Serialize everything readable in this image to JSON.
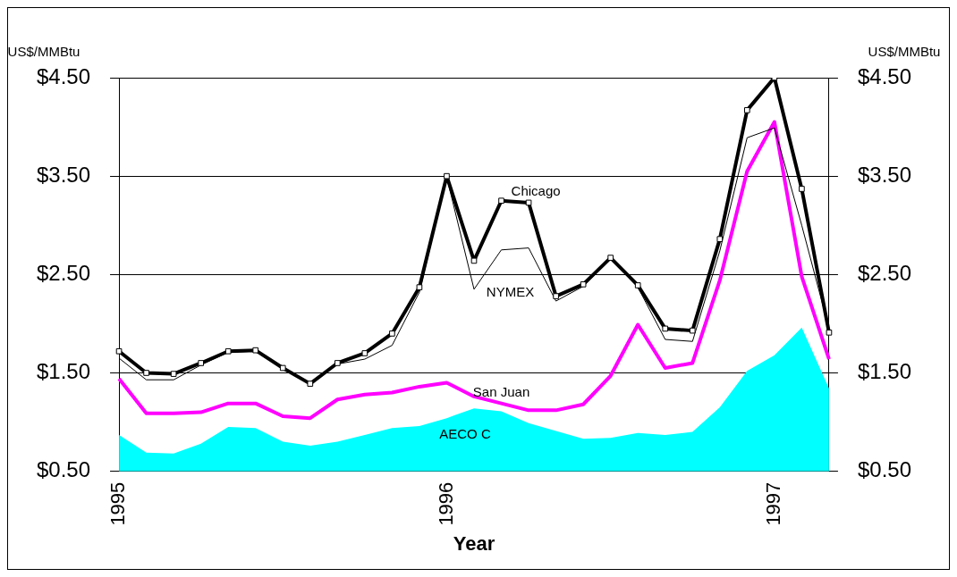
{
  "chart_data": {
    "type": "line",
    "xlabel": "Year",
    "ylabel": "US$/MMBtu",
    "y2label": "US$/MMBtu",
    "categories": [
      "1995",
      null,
      null,
      null,
      null,
      null,
      null,
      null,
      null,
      null,
      null,
      null,
      "1996",
      null,
      null,
      null,
      null,
      null,
      null,
      null,
      null,
      null,
      null,
      null,
      "1997",
      null,
      null
    ],
    "series": [
      {
        "name": "AECO C",
        "type": "area",
        "color": "#00ffff",
        "marker": "none",
        "values": [
          0.87,
          0.69,
          0.68,
          0.78,
          0.95,
          0.94,
          0.8,
          0.76,
          0.8,
          0.87,
          0.94,
          0.96,
          1.04,
          1.14,
          1.11,
          0.99,
          0.91,
          0.83,
          0.84,
          0.89,
          0.87,
          0.9,
          1.15,
          1.52,
          1.68,
          1.96,
          1.34
        ]
      },
      {
        "name": "San Juan",
        "color": "#ff00ff",
        "marker": "none",
        "values": [
          1.44,
          1.09,
          1.09,
          1.1,
          1.19,
          1.19,
          1.06,
          1.04,
          1.23,
          1.28,
          1.3,
          1.36,
          1.4,
          1.26,
          1.19,
          1.12,
          1.12,
          1.18,
          1.47,
          1.99,
          1.55,
          1.6,
          2.44,
          3.55,
          4.05,
          2.48,
          1.64
        ]
      },
      {
        "name": "NYMEX",
        "color": "#000000",
        "marker": "none",
        "values": [
          1.65,
          1.43,
          1.43,
          1.58,
          1.71,
          1.72,
          1.54,
          1.39,
          1.59,
          1.64,
          1.78,
          2.32,
          3.49,
          2.35,
          2.75,
          2.77,
          2.23,
          2.38,
          2.66,
          2.37,
          1.84,
          1.82,
          2.74,
          3.89,
          3.99,
          3.0,
          1.95
        ]
      },
      {
        "name": "Chicago",
        "color": "#000000",
        "marker": "square",
        "values": [
          1.72,
          1.5,
          1.49,
          1.6,
          1.72,
          1.73,
          1.55,
          1.39,
          1.6,
          1.7,
          1.9,
          2.37,
          3.5,
          2.64,
          3.25,
          3.23,
          2.28,
          2.4,
          2.67,
          2.39,
          1.95,
          1.93,
          2.86,
          4.17,
          4.5,
          3.37,
          1.91
        ]
      }
    ],
    "ylim": [
      0.5,
      4.5
    ],
    "yticks": [
      {
        "value": 0.5,
        "label": "$0.50"
      },
      {
        "value": 1.5,
        "label": "$1.50"
      },
      {
        "value": 2.5,
        "label": "$2.50"
      },
      {
        "value": 3.5,
        "label": "$3.50"
      },
      {
        "value": 4.5,
        "label": "$4.50"
      }
    ],
    "y2lim": [
      0.5,
      4.5
    ],
    "y2ticks": [
      {
        "value": 0.5,
        "label": "$0.50"
      },
      {
        "value": 1.5,
        "label": "$1.50"
      },
      {
        "value": 2.5,
        "label": "$2.50"
      },
      {
        "value": 3.5,
        "label": "$3.50"
      },
      {
        "value": 4.5,
        "label": "$4.50"
      }
    ],
    "grid": "y",
    "legend": false
  }
}
